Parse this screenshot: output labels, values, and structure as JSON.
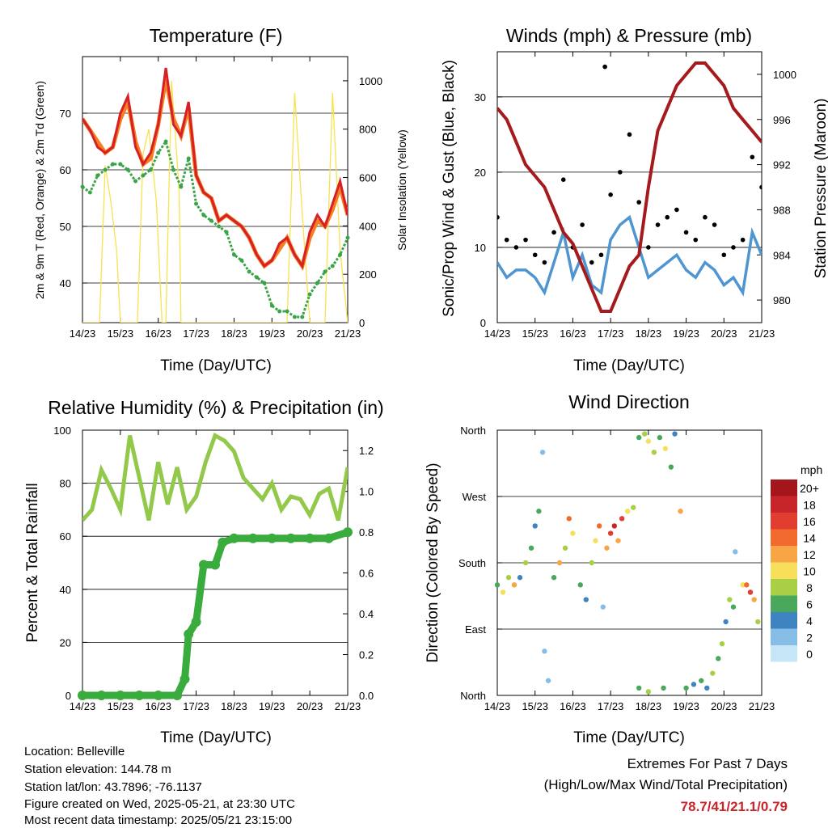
{
  "x_ticks": [
    "14/23",
    "15/23",
    "16/23",
    "17/23",
    "18/23",
    "19/23",
    "20/23",
    "21/23"
  ],
  "colors": {
    "temp_2m": "#d71f26",
    "temp_9m": "#f57f20",
    "dewpoint": "#3aa548",
    "solar": "#f9e24e",
    "gust": "#000000",
    "sonic_wind": "#4e95d1",
    "pressure": "#a51a1d",
    "rh": "#93c94a",
    "precip": "#3aac3e"
  },
  "panels": [
    {
      "id": "temperature",
      "title": "Temperature (F)",
      "xlabel": "Time (Day/UTC)",
      "ylabel_left": "2m & 9m T (Red, Orange) & 2m Td (Green)",
      "ylabel_right": "Solar Insolation (Yellow)",
      "left_ticks": [
        "40",
        "50",
        "60",
        "70"
      ],
      "right_ticks": [
        "0",
        "200",
        "400",
        "600",
        "800",
        "1000"
      ]
    },
    {
      "id": "winds",
      "title": "Winds (mph) & Pressure (mb)",
      "xlabel": "Time (Day/UTC)",
      "ylabel_left": "Sonic/Prop Wind & Gust (Blue, Black)",
      "ylabel_right": "Station Pressure (Maroon)",
      "left_ticks": [
        "0",
        "10",
        "20",
        "30"
      ],
      "right_ticks": [
        "980",
        "984",
        "988",
        "992",
        "996",
        "1000"
      ]
    },
    {
      "id": "humidity",
      "title": "Relative Humidity (%) & Precipitation (in)",
      "xlabel": "Time (Day/UTC)",
      "ylabel_left": "Percent & Total Rainfall",
      "left_ticks": [
        "0",
        "20",
        "40",
        "60",
        "80",
        "100"
      ],
      "right_ticks": [
        "0.0",
        "0.2",
        "0.4",
        "0.6",
        "0.8",
        "1.0",
        "1.2"
      ]
    },
    {
      "id": "direction",
      "title": "Wind Direction",
      "xlabel": "Time (Day/UTC)",
      "ylabel_left": "Direction (Colored By Speed)",
      "left_ticks": [
        "North",
        "East",
        "South",
        "West",
        "North"
      ]
    }
  ],
  "colorbar": {
    "title": "mph",
    "labels": [
      "20+",
      "18",
      "16",
      "14",
      "12",
      "10",
      "8",
      "6",
      "4",
      "2",
      "0"
    ],
    "colors": [
      "#a3171c",
      "#c8252b",
      "#e13d31",
      "#f26a2d",
      "#f7a545",
      "#f7df5a",
      "#a8cf45",
      "#4aa85d",
      "#3f84c0",
      "#86bde6",
      "#c6e6f7"
    ]
  },
  "chart_data": [
    {
      "id": "temperature",
      "type": "line",
      "x_unit": "days since 14/23",
      "ylim_left": [
        33,
        80
      ],
      "ylim_right": [
        0,
        1100
      ],
      "series": [
        {
          "name": "2m T",
          "axis": "left",
          "x": [
            0,
            0.2,
            0.4,
            0.6,
            0.8,
            1.0,
            1.2,
            1.4,
            1.6,
            1.8,
            2.0,
            2.2,
            2.4,
            2.6,
            2.8,
            3.0,
            3.2,
            3.4,
            3.6,
            3.8,
            4.0,
            4.2,
            4.4,
            4.6,
            4.8,
            5.0,
            5.2,
            5.4,
            5.6,
            5.8,
            6.0,
            6.2,
            6.4,
            6.6,
            6.8,
            7.0
          ],
          "y": [
            69,
            67,
            64,
            63,
            64,
            70,
            73,
            64,
            61,
            63,
            68,
            78,
            68,
            66,
            72,
            59,
            56,
            55,
            51,
            52,
            51,
            50,
            48,
            45,
            43,
            44,
            47,
            48,
            45,
            43,
            49,
            52,
            50,
            54,
            58,
            52
          ]
        },
        {
          "name": "9m T",
          "axis": "left",
          "x": [
            0,
            0.2,
            0.4,
            0.6,
            0.8,
            1.0,
            1.2,
            1.4,
            1.6,
            1.8,
            2.0,
            2.2,
            2.4,
            2.6,
            2.8,
            3.0,
            3.2,
            3.4,
            3.6,
            3.8,
            4.0,
            4.2,
            4.4,
            4.6,
            4.8,
            5.0,
            5.2,
            5.4,
            5.6,
            5.8,
            6.0,
            6.2,
            6.4,
            6.6,
            6.8,
            7.0
          ],
          "y": [
            69,
            67,
            65,
            63,
            64,
            69,
            72,
            65,
            61,
            62,
            68,
            76,
            69,
            66,
            71,
            59,
            56,
            55,
            51,
            52,
            51,
            50,
            48,
            45,
            43,
            44,
            46,
            48,
            45,
            43,
            48,
            51,
            50,
            53,
            57,
            52
          ]
        },
        {
          "name": "2m Td",
          "axis": "left",
          "x": [
            0,
            0.2,
            0.4,
            0.6,
            0.8,
            1.0,
            1.2,
            1.4,
            1.6,
            1.8,
            2.0,
            2.2,
            2.4,
            2.6,
            2.8,
            3.0,
            3.2,
            3.4,
            3.6,
            3.8,
            4.0,
            4.2,
            4.4,
            4.6,
            4.8,
            5.0,
            5.2,
            5.4,
            5.6,
            5.8,
            6.0,
            6.2,
            6.4,
            6.6,
            6.8,
            7.0
          ],
          "y": [
            57,
            56,
            59,
            60,
            61,
            61,
            60,
            58,
            59,
            60,
            63,
            65,
            60,
            57,
            62,
            54,
            52,
            51,
            50,
            49,
            45,
            44,
            42,
            41,
            40,
            36,
            35,
            35,
            34,
            34,
            38,
            40,
            42,
            43,
            45,
            48
          ]
        },
        {
          "name": "Solar Insolation",
          "axis": "right",
          "x": [
            0,
            0.45,
            0.6,
            0.75,
            0.9,
            1.0,
            1.2,
            1.45,
            1.6,
            1.75,
            1.95,
            2.1,
            2.2,
            2.35,
            2.55,
            2.6,
            2.75,
            2.95,
            3.1,
            3.4,
            3.6,
            3.8,
            4.0,
            4.4,
            4.6,
            4.8,
            5.0,
            5.4,
            5.6,
            5.8,
            6.0,
            6.4,
            6.6,
            6.8,
            7.0
          ],
          "y": [
            0,
            0,
            650,
            500,
            300,
            0,
            0,
            0,
            700,
            800,
            500,
            0,
            0,
            1000,
            550,
            0,
            0,
            0,
            0,
            0,
            0,
            0,
            0,
            0,
            0,
            0,
            0,
            0,
            950,
            450,
            0,
            0,
            950,
            300,
            0
          ]
        }
      ]
    },
    {
      "id": "winds",
      "type": "line",
      "x_unit": "days since 14/23",
      "ylim_left": [
        0,
        36
      ],
      "ylim_right": [
        978,
        1002
      ],
      "series": [
        {
          "name": "Sonic/Prop Wind",
          "axis": "left",
          "x": [
            0,
            0.25,
            0.5,
            0.75,
            1.0,
            1.25,
            1.5,
            1.75,
            2.0,
            2.25,
            2.5,
            2.75,
            3.0,
            3.25,
            3.5,
            3.75,
            4.0,
            4.25,
            4.5,
            4.75,
            5.0,
            5.25,
            5.5,
            5.75,
            6.0,
            6.25,
            6.5,
            6.75,
            7.0
          ],
          "y": [
            8,
            6,
            7,
            7,
            6,
            4,
            8,
            12,
            6,
            9,
            5,
            4,
            11,
            13,
            14,
            10,
            6,
            7,
            8,
            9,
            7,
            6,
            8,
            7,
            5,
            6,
            4,
            12,
            9
          ]
        },
        {
          "name": "Gust",
          "axis": "left",
          "x": [
            0,
            0.25,
            0.5,
            0.75,
            1.0,
            1.25,
            1.5,
            1.75,
            2.0,
            2.25,
            2.5,
            2.75,
            2.85,
            3.0,
            3.25,
            3.5,
            3.75,
            4.0,
            4.25,
            4.5,
            4.75,
            5.0,
            5.25,
            5.5,
            5.75,
            6.0,
            6.25,
            6.5,
            6.75,
            7.0
          ],
          "y": [
            14,
            11,
            10,
            11,
            9,
            8,
            12,
            19,
            10,
            13,
            8,
            9,
            34,
            17,
            20,
            25,
            16,
            10,
            13,
            14,
            15,
            12,
            11,
            14,
            13,
            9,
            10,
            11,
            22,
            18
          ]
        },
        {
          "name": "Station Pressure",
          "axis": "right",
          "x": [
            0,
            0.25,
            0.5,
            0.75,
            1.0,
            1.25,
            1.5,
            1.75,
            2.0,
            2.25,
            2.5,
            2.75,
            3.0,
            3.25,
            3.5,
            3.75,
            4.0,
            4.25,
            4.5,
            4.75,
            5.0,
            5.25,
            5.5,
            5.75,
            6.0,
            6.25,
            6.5,
            6.75,
            7.0
          ],
          "y": [
            997,
            996,
            994,
            992,
            991,
            990,
            988,
            986,
            985,
            983,
            981,
            979,
            979,
            981,
            983,
            984,
            990,
            995,
            997,
            999,
            1000,
            1001,
            1001,
            1000,
            999,
            997,
            996,
            995,
            994
          ]
        }
      ]
    },
    {
      "id": "humidity",
      "type": "line",
      "x_unit": "days since 14/23",
      "ylim_left": [
        0,
        100
      ],
      "ylim_right": [
        0,
        1.3
      ],
      "series": [
        {
          "name": "Relative Humidity",
          "axis": "left",
          "x": [
            0,
            0.25,
            0.5,
            0.75,
            1.0,
            1.25,
            1.5,
            1.75,
            2.0,
            2.25,
            2.5,
            2.75,
            3.0,
            3.25,
            3.5,
            3.75,
            4.0,
            4.25,
            4.5,
            4.75,
            5.0,
            5.25,
            5.5,
            5.75,
            6.0,
            6.25,
            6.5,
            6.75,
            7.0
          ],
          "y": [
            66,
            70,
            85,
            78,
            70,
            98,
            82,
            66,
            88,
            72,
            86,
            70,
            75,
            88,
            98,
            96,
            92,
            82,
            78,
            74,
            80,
            70,
            75,
            74,
            68,
            76,
            78,
            66,
            86
          ]
        },
        {
          "name": "Total Rainfall",
          "axis": "right",
          "x": [
            0,
            0.5,
            1.0,
            1.5,
            2.0,
            2.5,
            2.7,
            2.8,
            3.0,
            3.2,
            3.5,
            3.7,
            4.0,
            4.5,
            5.0,
            5.5,
            6.0,
            6.5,
            7.0
          ],
          "y": [
            0,
            0,
            0,
            0,
            0,
            0,
            0.08,
            0.3,
            0.36,
            0.64,
            0.64,
            0.75,
            0.77,
            0.77,
            0.77,
            0.77,
            0.77,
            0.77,
            0.8
          ]
        }
      ]
    },
    {
      "id": "direction",
      "type": "scatter",
      "x_unit": "days since 14/23",
      "ylim": [
        0,
        360
      ],
      "points": [
        {
          "x": 0.0,
          "dir": 150,
          "speed": 6
        },
        {
          "x": 0.15,
          "dir": 140,
          "speed": 10
        },
        {
          "x": 0.3,
          "dir": 160,
          "speed": 8
        },
        {
          "x": 0.45,
          "dir": 150,
          "speed": 12
        },
        {
          "x": 0.6,
          "dir": 160,
          "speed": 4
        },
        {
          "x": 0.75,
          "dir": 180,
          "speed": 8
        },
        {
          "x": 0.9,
          "dir": 200,
          "speed": 6
        },
        {
          "x": 1.0,
          "dir": 230,
          "speed": 4
        },
        {
          "x": 1.1,
          "dir": 250,
          "speed": 6
        },
        {
          "x": 1.2,
          "dir": 330,
          "speed": 2
        },
        {
          "x": 1.25,
          "dir": 60,
          "speed": 2
        },
        {
          "x": 1.35,
          "dir": 20,
          "speed": 2
        },
        {
          "x": 1.5,
          "dir": 160,
          "speed": 6
        },
        {
          "x": 1.65,
          "dir": 180,
          "speed": 12
        },
        {
          "x": 1.8,
          "dir": 200,
          "speed": 8
        },
        {
          "x": 1.9,
          "dir": 240,
          "speed": 14
        },
        {
          "x": 2.0,
          "dir": 220,
          "speed": 10
        },
        {
          "x": 2.2,
          "dir": 150,
          "speed": 6
        },
        {
          "x": 2.35,
          "dir": 130,
          "speed": 4
        },
        {
          "x": 2.5,
          "dir": 180,
          "speed": 8
        },
        {
          "x": 2.6,
          "dir": 210,
          "speed": 10
        },
        {
          "x": 2.7,
          "dir": 230,
          "speed": 14
        },
        {
          "x": 2.8,
          "dir": 120,
          "speed": 2
        },
        {
          "x": 2.9,
          "dir": 200,
          "speed": 12
        },
        {
          "x": 3.0,
          "dir": 220,
          "speed": 16
        },
        {
          "x": 3.1,
          "dir": 230,
          "speed": 18
        },
        {
          "x": 3.2,
          "dir": 210,
          "speed": 12
        },
        {
          "x": 3.3,
          "dir": 240,
          "speed": 16
        },
        {
          "x": 3.45,
          "dir": 250,
          "speed": 10
        },
        {
          "x": 3.6,
          "dir": 255,
          "speed": 8
        },
        {
          "x": 3.75,
          "dir": 350,
          "speed": 6
        },
        {
          "x": 3.9,
          "dir": 355,
          "speed": 8
        },
        {
          "x": 4.0,
          "dir": 345,
          "speed": 10
        },
        {
          "x": 4.15,
          "dir": 330,
          "speed": 8
        },
        {
          "x": 4.3,
          "dir": 350,
          "speed": 6
        },
        {
          "x": 4.45,
          "dir": 335,
          "speed": 10
        },
        {
          "x": 4.6,
          "dir": 310,
          "speed": 6
        },
        {
          "x": 4.7,
          "dir": 355,
          "speed": 4
        },
        {
          "x": 4.85,
          "dir": 250,
          "speed": 12
        },
        {
          "x": 3.75,
          "dir": 10,
          "speed": 6
        },
        {
          "x": 4.0,
          "dir": 5,
          "speed": 8
        },
        {
          "x": 4.4,
          "dir": 10,
          "speed": 6
        },
        {
          "x": 5.0,
          "dir": 10,
          "speed": 6
        },
        {
          "x": 5.2,
          "dir": 15,
          "speed": 4
        },
        {
          "x": 5.4,
          "dir": 20,
          "speed": 6
        },
        {
          "x": 5.55,
          "dir": 10,
          "speed": 4
        },
        {
          "x": 5.7,
          "dir": 30,
          "speed": 8
        },
        {
          "x": 5.85,
          "dir": 50,
          "speed": 6
        },
        {
          "x": 5.95,
          "dir": 70,
          "speed": 8
        },
        {
          "x": 6.05,
          "dir": 100,
          "speed": 4
        },
        {
          "x": 6.15,
          "dir": 130,
          "speed": 8
        },
        {
          "x": 6.25,
          "dir": 120,
          "speed": 6
        },
        {
          "x": 6.3,
          "dir": 195,
          "speed": 2
        },
        {
          "x": 6.5,
          "dir": 150,
          "speed": 10
        },
        {
          "x": 6.6,
          "dir": 150,
          "speed": 14
        },
        {
          "x": 6.7,
          "dir": 140,
          "speed": 16
        },
        {
          "x": 6.8,
          "dir": 130,
          "speed": 12
        },
        {
          "x": 6.9,
          "dir": 100,
          "speed": 8
        }
      ]
    }
  ],
  "info": {
    "location": "Location: Belleville",
    "elevation": "Station elevation: 144.78 m",
    "latlon": "Station lat/lon: 43.7896; -76.1137",
    "created": "Figure created on Wed, 2025-05-21, at 23:30 UTC",
    "timestamp": "Most recent data timestamp: 2025/05/21 23:15:00"
  },
  "extremes": {
    "title": "Extremes For Past 7 Days",
    "subtitle": "(High/Low/Max Wind/Total Precipitation)",
    "values": "78.7/41/21.1/0.79"
  }
}
